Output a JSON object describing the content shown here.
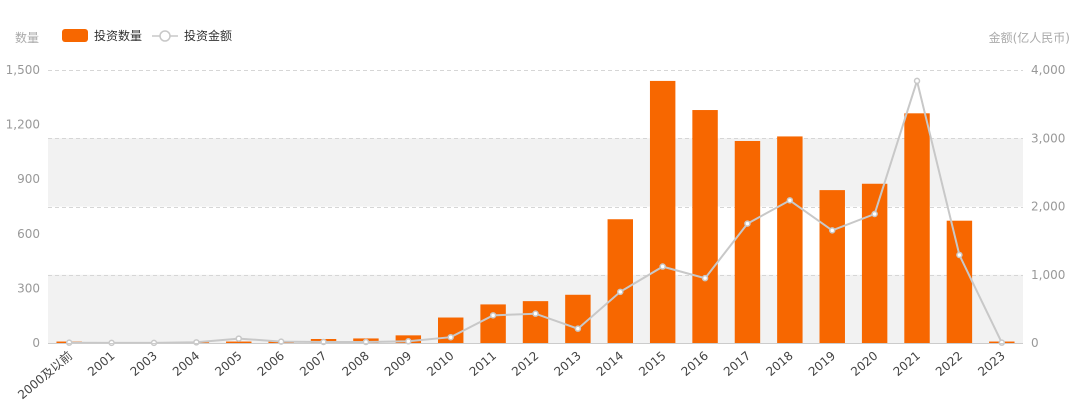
{
  "chart_data": {
    "type": "bar",
    "y_left_label": "数量",
    "y_right_label": "金额(亿人民币)",
    "y_left_range": [
      0,
      1500
    ],
    "y_left_ticks": [
      "0",
      "300",
      "600",
      "900",
      "1,200",
      "1,500"
    ],
    "y_right_range": [
      0,
      4000
    ],
    "y_right_ticks": [
      "0",
      "1,000",
      "2,000",
      "3,000",
      "4,000"
    ],
    "legend_position": "top-left",
    "colors": {
      "bar": "#f76700",
      "line": "#c8c8c8",
      "band": "#f2f2f2",
      "grid": "#d6d6d6"
    },
    "categories": [
      "2000及以前",
      "2001",
      "2003",
      "2004",
      "2005",
      "2006",
      "2007",
      "2008",
      "2009",
      "2010",
      "2011",
      "2012",
      "2013",
      "2014",
      "2015",
      "2016",
      "2017",
      "2018",
      "2019",
      "2020",
      "2021",
      "2022",
      "2023"
    ],
    "series": [
      {
        "name": "投资数量",
        "type": "bar",
        "axis": "left",
        "values": [
          8,
          2,
          2,
          4,
          8,
          10,
          22,
          25,
          42,
          140,
          212,
          230,
          265,
          680,
          1440,
          1280,
          1110,
          1135,
          840,
          875,
          1262,
          672,
          8
        ]
      },
      {
        "name": "投资金额",
        "type": "line",
        "axis": "right",
        "values": [
          5,
          2,
          2,
          10,
          65,
          20,
          15,
          15,
          25,
          85,
          405,
          430,
          210,
          750,
          1120,
          950,
          1750,
          2090,
          1650,
          1890,
          3840,
          1290,
          5
        ]
      }
    ]
  }
}
